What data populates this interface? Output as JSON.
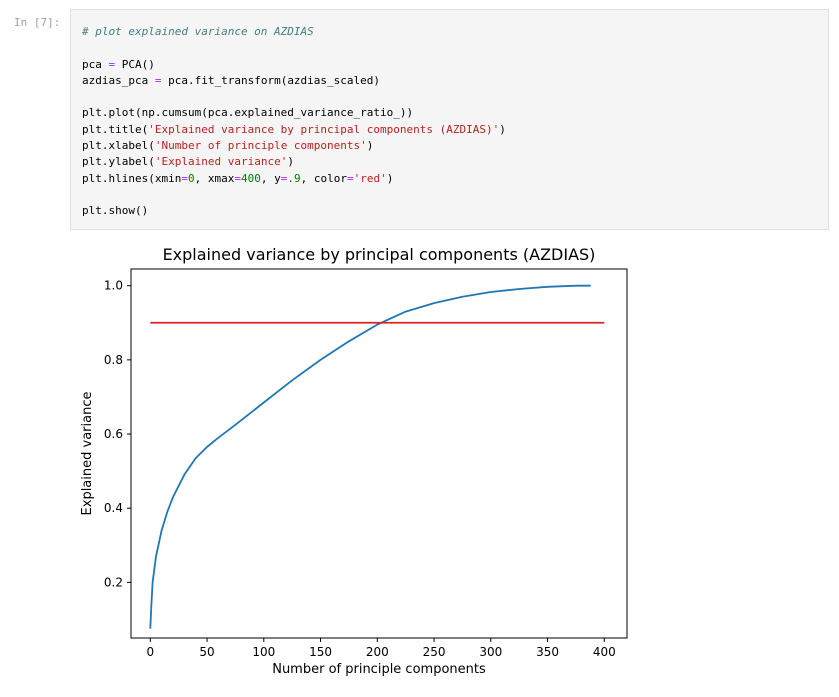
{
  "cell": {
    "prompt": "In [7]:",
    "lines": [
      [
        {
          "t": "# plot explained variance on AZDIAS",
          "c": "comment"
        }
      ],
      [],
      [
        {
          "t": "pca "
        },
        {
          "t": "=",
          "c": "op"
        },
        {
          "t": " PCA()"
        }
      ],
      [
        {
          "t": "azdias_pca "
        },
        {
          "t": "=",
          "c": "op"
        },
        {
          "t": " pca.fit_transform(azdias_scaled)"
        }
      ],
      [],
      [
        {
          "t": "plt.plot(np.cumsum(pca.explained_variance_ratio_))"
        }
      ],
      [
        {
          "t": "plt.title("
        },
        {
          "t": "'Explained variance by principal components (AZDIAS)'",
          "c": "str"
        },
        {
          "t": ")"
        }
      ],
      [
        {
          "t": "plt.xlabel("
        },
        {
          "t": "'Number of principle components'",
          "c": "str"
        },
        {
          "t": ")"
        }
      ],
      [
        {
          "t": "plt.ylabel("
        },
        {
          "t": "'Explained variance'",
          "c": "str"
        },
        {
          "t": ")"
        }
      ],
      [
        {
          "t": "plt.hlines(xmin"
        },
        {
          "t": "=",
          "c": "op"
        },
        {
          "t": "0",
          "c": "num"
        },
        {
          "t": ", xmax"
        },
        {
          "t": "=",
          "c": "op"
        },
        {
          "t": "400",
          "c": "num"
        },
        {
          "t": ", y"
        },
        {
          "t": "=",
          "c": "op"
        },
        {
          "t": ".9",
          "c": "num"
        },
        {
          "t": ", color"
        },
        {
          "t": "=",
          "c": "op"
        },
        {
          "t": "'red'",
          "c": "str"
        },
        {
          "t": ")"
        }
      ],
      [],
      [
        {
          "t": "plt.show()"
        }
      ]
    ]
  },
  "chart_data": {
    "type": "line",
    "title": "Explained variance by principal components (AZDIAS)",
    "xlabel": "Number of principle components",
    "ylabel": "Explained variance",
    "xlim": [
      -17,
      420
    ],
    "ylim": [
      0.05,
      1.045
    ],
    "xticks": [
      0,
      50,
      100,
      150,
      200,
      250,
      300,
      350,
      400
    ],
    "yticks": [
      0.2,
      0.4,
      0.6,
      0.8,
      1.0
    ],
    "ytick_labels": [
      "0.2",
      "0.4",
      "0.6",
      "0.8",
      "1.0"
    ],
    "grid": false,
    "series": [
      {
        "color": "#1f77b4",
        "x": [
          0,
          1,
          2,
          5,
          10,
          15,
          20,
          30,
          40,
          50,
          60,
          75,
          100,
          125,
          150,
          175,
          200,
          225,
          250,
          275,
          300,
          325,
          350,
          375,
          388
        ],
        "y": [
          0.075,
          0.14,
          0.2,
          0.27,
          0.34,
          0.39,
          0.43,
          0.49,
          0.535,
          0.565,
          0.59,
          0.625,
          0.685,
          0.745,
          0.8,
          0.85,
          0.895,
          0.93,
          0.953,
          0.97,
          0.983,
          0.991,
          0.997,
          1.0,
          1.0
        ]
      }
    ],
    "hlines": [
      {
        "y": 0.9,
        "xmin": 0,
        "xmax": 400,
        "color": "#d62728"
      }
    ]
  }
}
